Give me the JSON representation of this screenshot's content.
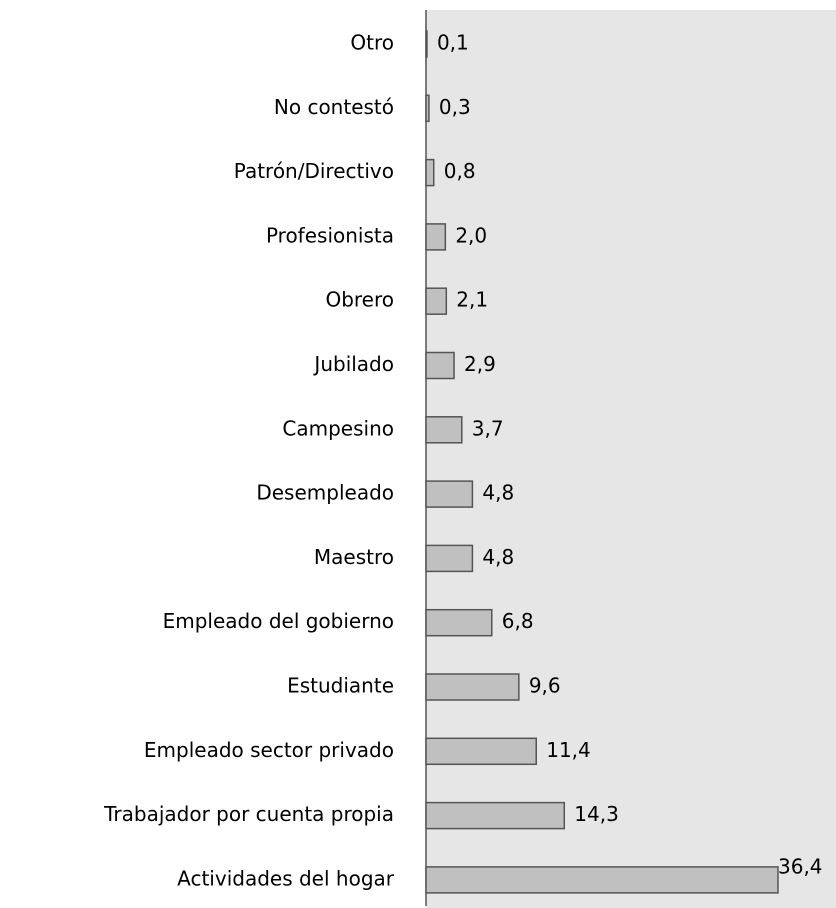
{
  "chart_data": {
    "type": "barh",
    "categories": [
      "Otro",
      "No contestó",
      "Patrón/Directivo",
      "Profesionista",
      "Obrero",
      "Jubilado",
      "Campesino",
      "Desempleado",
      "Maestro",
      "Empleado del gobierno",
      "Estudiante",
      "Empleado sector privado",
      "Trabajador por cuenta propia",
      "Actividades del hogar"
    ],
    "values": [
      0.1,
      0.3,
      0.8,
      2.0,
      2.1,
      2.9,
      3.7,
      4.8,
      4.8,
      6.8,
      9.6,
      11.4,
      14.3,
      36.4
    ],
    "value_labels": [
      "0,1",
      "0,3",
      "0,8",
      "2,0",
      "2,1",
      "2,9",
      "3,7",
      "4,8",
      "4,8",
      "6,8",
      "9,6",
      "11,4",
      "14,3",
      "36,4"
    ],
    "color": "#c0c0c0",
    "xlim": [
      0,
      42.4
    ]
  }
}
